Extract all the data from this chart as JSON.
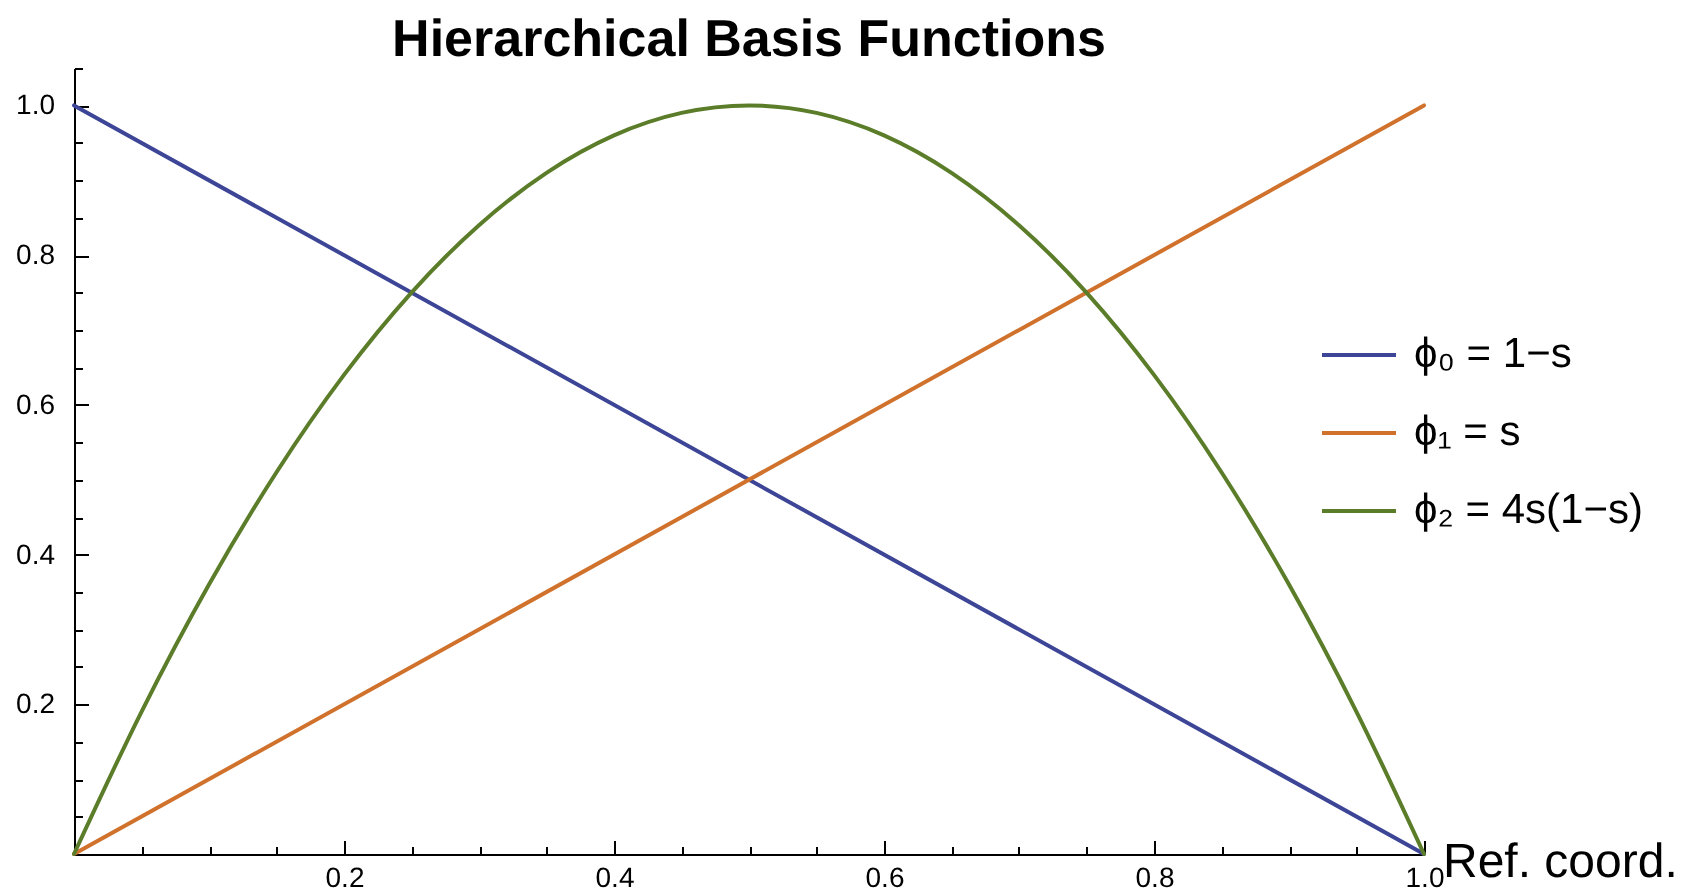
{
  "chart_data": {
    "type": "line",
    "title": "Hierarchical Basis Functions",
    "xlabel": "Ref. coord.",
    "xlim": [
      0,
      1
    ],
    "ylim": [
      0,
      1.05
    ],
    "xticks": [
      {
        "value": 0.05,
        "label": null
      },
      {
        "value": 0.1,
        "label": null
      },
      {
        "value": 0.15,
        "label": null
      },
      0.2,
      {
        "value": 0.25,
        "label": null
      },
      {
        "value": 0.3,
        "label": null
      },
      {
        "value": 0.35,
        "label": null
      },
      0.4,
      {
        "value": 0.45,
        "label": null
      },
      {
        "value": 0.5,
        "label": null
      },
      {
        "value": 0.55,
        "label": null
      },
      0.6,
      {
        "value": 0.65,
        "label": null
      },
      {
        "value": 0.7,
        "label": null
      },
      {
        "value": 0.75,
        "label": null
      },
      0.8,
      {
        "value": 0.85,
        "label": null
      },
      {
        "value": 0.9,
        "label": null
      },
      {
        "value": 0.95,
        "label": null
      },
      {
        "value": 1,
        "label": "1.0"
      }
    ],
    "yticks": [
      {
        "value": 0.05,
        "label": null
      },
      {
        "value": 0.1,
        "label": null
      },
      {
        "value": 0.15,
        "label": null
      },
      0.2,
      {
        "value": 0.25,
        "label": null
      },
      {
        "value": 0.3,
        "label": null
      },
      {
        "value": 0.35,
        "label": null
      },
      0.4,
      {
        "value": 0.45,
        "label": null
      },
      {
        "value": 0.5,
        "label": null
      },
      {
        "value": 0.55,
        "label": null
      },
      0.6,
      {
        "value": 0.65,
        "label": null
      },
      {
        "value": 0.7,
        "label": null
      },
      {
        "value": 0.75,
        "label": null
      },
      0.8,
      {
        "value": 0.85,
        "label": null
      },
      {
        "value": 0.9,
        "label": null
      },
      {
        "value": 0.95,
        "label": null
      },
      {
        "value": 1,
        "label": "1.0"
      },
      {
        "value": 1.05,
        "label": null
      }
    ],
    "legend": "right",
    "series": [
      {
        "name": "ϕ₀ = 1−s",
        "color": "#3d4597",
        "x": [
          0,
          1
        ],
        "values": [
          1,
          0
        ]
      },
      {
        "name": "ϕ₁ = s",
        "color": "#d0712c",
        "x": [
          0,
          1
        ],
        "values": [
          0,
          1
        ]
      },
      {
        "name": "ϕ₂ = 4s(1−s)",
        "color": "#5b7d2a",
        "x": [
          0,
          0.05,
          0.1,
          0.15,
          0.2,
          0.25,
          0.3,
          0.35,
          0.4,
          0.45,
          0.5,
          0.55,
          0.6,
          0.65,
          0.7,
          0.75,
          0.8,
          0.85,
          0.9,
          0.95,
          1
        ],
        "values": [
          0,
          0.19,
          0.36,
          0.51,
          0.64,
          0.75,
          0.84,
          0.91,
          0.96,
          0.99,
          1,
          0.99,
          0.96,
          0.91,
          0.84,
          0.75,
          0.64,
          0.51,
          0.36,
          0.19,
          0
        ]
      }
    ]
  }
}
